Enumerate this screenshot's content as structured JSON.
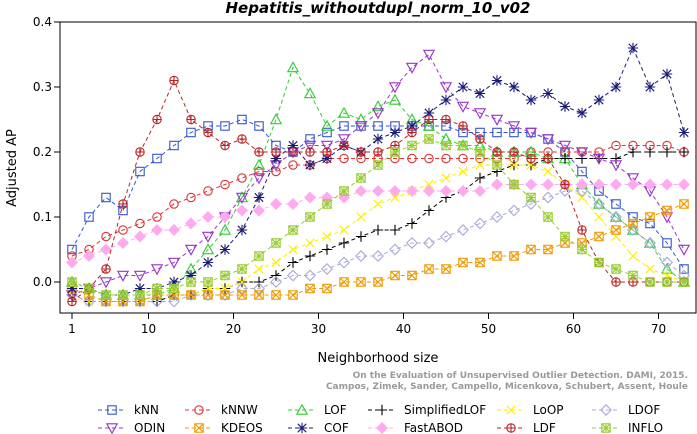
{
  "chart_data": {
    "type": "line",
    "title": "Hepatitis_withoutdupl_norm_10_v02",
    "xlabel": "Neighborhood size",
    "ylabel": "Adjusted AP",
    "xlim": [
      1,
      73
    ],
    "ylim": [
      -0.04,
      0.4
    ],
    "xticks": [
      1,
      10,
      20,
      30,
      40,
      50,
      60,
      70
    ],
    "yticks": [
      0.0,
      0.1,
      0.2,
      0.3,
      0.4
    ],
    "grid": false,
    "legend_position": "bottom",
    "credit_lines": [
      "Campos, Zimek, Sander, Campello, Micenkova, Schubert, Assent, Houle",
      "On the Evaluation of Unsupervised Outlier Detection. DAMI, 2015."
    ],
    "series": [
      {
        "name": "kNN",
        "color": "#3355cc",
        "marker": "square",
        "x": [
          1,
          3,
          5,
          7,
          9,
          11,
          13,
          15,
          17,
          19,
          21,
          23,
          25,
          27,
          29,
          31,
          33,
          35,
          37,
          39,
          41,
          43,
          45,
          47,
          49,
          51,
          53,
          55,
          57,
          59,
          61,
          63,
          65,
          67,
          69,
          71,
          73
        ],
        "y": [
          0.05,
          0.1,
          0.13,
          0.11,
          0.17,
          0.19,
          0.21,
          0.23,
          0.24,
          0.24,
          0.25,
          0.24,
          0.21,
          0.2,
          0.22,
          0.23,
          0.24,
          0.24,
          0.24,
          0.24,
          0.24,
          0.24,
          0.24,
          0.23,
          0.23,
          0.23,
          0.23,
          0.23,
          0.22,
          0.2,
          0.17,
          0.14,
          0.12,
          0.1,
          0.09,
          0.06,
          0.02
        ]
      },
      {
        "name": "kNNW",
        "color": "#dd3333",
        "marker": "circle",
        "x": [
          1,
          3,
          5,
          7,
          9,
          11,
          13,
          15,
          17,
          19,
          21,
          23,
          25,
          27,
          29,
          31,
          33,
          35,
          37,
          39,
          41,
          43,
          45,
          47,
          49,
          51,
          53,
          55,
          57,
          59,
          61,
          63,
          65,
          67,
          69,
          71,
          73
        ],
        "y": [
          0.04,
          0.05,
          0.07,
          0.08,
          0.09,
          0.1,
          0.12,
          0.13,
          0.14,
          0.15,
          0.16,
          0.17,
          0.17,
          0.18,
          0.18,
          0.19,
          0.19,
          0.19,
          0.19,
          0.19,
          0.19,
          0.19,
          0.19,
          0.19,
          0.19,
          0.19,
          0.19,
          0.2,
          0.2,
          0.2,
          0.2,
          0.2,
          0.21,
          0.21,
          0.21,
          0.21,
          0.2
        ]
      },
      {
        "name": "LOF",
        "color": "#33cc33",
        "marker": "triangle",
        "x": [
          1,
          3,
          5,
          7,
          9,
          11,
          13,
          15,
          17,
          19,
          21,
          23,
          25,
          27,
          29,
          31,
          33,
          35,
          37,
          39,
          41,
          43,
          45,
          47,
          49,
          51,
          53,
          55,
          57,
          59,
          61,
          63,
          65,
          67,
          69,
          71,
          73
        ],
        "y": [
          0.0,
          -0.01,
          -0.02,
          -0.02,
          -0.02,
          -0.02,
          -0.01,
          0.02,
          0.05,
          0.08,
          0.13,
          0.18,
          0.25,
          0.33,
          0.29,
          0.24,
          0.26,
          0.25,
          0.27,
          0.28,
          0.25,
          0.24,
          0.22,
          0.21,
          0.21,
          0.2,
          0.2,
          0.2,
          0.19,
          0.19,
          0.15,
          0.12,
          0.1,
          0.08,
          0.06,
          0.02,
          0.0
        ]
      },
      {
        "name": "SimplifiedLOF",
        "color": "#000000",
        "marker": "plus",
        "x": [
          1,
          3,
          5,
          7,
          9,
          11,
          13,
          15,
          17,
          19,
          21,
          23,
          25,
          27,
          29,
          31,
          33,
          35,
          37,
          39,
          41,
          43,
          45,
          47,
          49,
          51,
          53,
          55,
          57,
          59,
          61,
          63,
          65,
          67,
          69,
          71,
          73
        ],
        "y": [
          -0.02,
          -0.03,
          -0.03,
          -0.03,
          -0.03,
          -0.03,
          -0.02,
          -0.02,
          -0.01,
          -0.01,
          0.0,
          0.0,
          0.01,
          0.03,
          0.04,
          0.05,
          0.06,
          0.07,
          0.08,
          0.08,
          0.09,
          0.11,
          0.13,
          0.14,
          0.16,
          0.17,
          0.18,
          0.18,
          0.19,
          0.19,
          0.19,
          0.19,
          0.19,
          0.2,
          0.2,
          0.2,
          0.2
        ]
      },
      {
        "name": "LoOP",
        "color": "#ffee00",
        "marker": "x",
        "x": [
          1,
          3,
          5,
          7,
          9,
          11,
          13,
          15,
          17,
          19,
          21,
          23,
          25,
          27,
          29,
          31,
          33,
          35,
          37,
          39,
          41,
          43,
          45,
          47,
          49,
          51,
          53,
          55,
          57,
          59,
          61,
          63,
          65,
          67,
          69,
          71,
          73
        ],
        "y": [
          -0.02,
          -0.03,
          -0.03,
          -0.03,
          -0.03,
          -0.02,
          -0.02,
          -0.02,
          -0.01,
          -0.01,
          0.0,
          0.02,
          0.03,
          0.05,
          0.06,
          0.07,
          0.08,
          0.1,
          0.12,
          0.13,
          0.14,
          0.15,
          0.16,
          0.17,
          0.18,
          0.18,
          0.18,
          0.18,
          0.17,
          0.15,
          0.13,
          0.1,
          0.07,
          0.04,
          0.02,
          0.01,
          0.0
        ]
      },
      {
        "name": "LDOF",
        "color": "#aaaadd",
        "marker": "diamond",
        "x": [
          1,
          3,
          5,
          7,
          9,
          11,
          13,
          15,
          17,
          19,
          21,
          23,
          25,
          27,
          29,
          31,
          33,
          35,
          37,
          39,
          41,
          43,
          45,
          47,
          49,
          51,
          53,
          55,
          57,
          59,
          61,
          63,
          65,
          67,
          69,
          71,
          73
        ],
        "y": [
          -0.02,
          -0.03,
          -0.03,
          -0.03,
          -0.03,
          -0.03,
          -0.03,
          -0.02,
          -0.02,
          -0.02,
          -0.01,
          -0.01,
          0.0,
          0.01,
          0.01,
          0.02,
          0.03,
          0.04,
          0.04,
          0.05,
          0.06,
          0.06,
          0.07,
          0.08,
          0.09,
          0.1,
          0.11,
          0.12,
          0.13,
          0.14,
          0.14,
          0.12,
          0.1,
          0.08,
          0.06,
          0.03,
          0.01
        ]
      },
      {
        "name": "ODIN",
        "color": "#9933cc",
        "marker": "triangle-down",
        "x": [
          1,
          3,
          5,
          7,
          9,
          11,
          13,
          15,
          17,
          19,
          21,
          23,
          25,
          27,
          29,
          31,
          33,
          35,
          37,
          39,
          41,
          43,
          45,
          47,
          49,
          51,
          53,
          55,
          57,
          59,
          61,
          63,
          65,
          67,
          69,
          71,
          73
        ],
        "y": [
          -0.02,
          -0.01,
          0.0,
          0.01,
          0.01,
          0.02,
          0.03,
          0.05,
          0.07,
          0.1,
          0.13,
          0.16,
          0.18,
          0.2,
          0.21,
          0.21,
          0.22,
          0.24,
          0.26,
          0.3,
          0.33,
          0.35,
          0.3,
          0.27,
          0.26,
          0.25,
          0.24,
          0.23,
          0.22,
          0.21,
          0.2,
          0.19,
          0.18,
          0.16,
          0.14,
          0.1,
          0.05
        ]
      },
      {
        "name": "KDEOS",
        "color": "#ee9900",
        "marker": "square-x",
        "x": [
          1,
          3,
          5,
          7,
          9,
          11,
          13,
          15,
          17,
          19,
          21,
          23,
          25,
          27,
          29,
          31,
          33,
          35,
          37,
          39,
          41,
          43,
          45,
          47,
          49,
          51,
          53,
          55,
          57,
          59,
          61,
          63,
          65,
          67,
          69,
          71,
          73
        ],
        "y": [
          -0.01,
          -0.02,
          -0.03,
          -0.03,
          -0.03,
          -0.02,
          -0.02,
          -0.02,
          -0.02,
          -0.02,
          -0.02,
          -0.02,
          -0.02,
          -0.02,
          -0.01,
          -0.01,
          0.0,
          0.0,
          0.0,
          0.01,
          0.01,
          0.02,
          0.02,
          0.03,
          0.03,
          0.04,
          0.04,
          0.05,
          0.05,
          0.06,
          0.06,
          0.07,
          0.08,
          0.09,
          0.1,
          0.11,
          0.12
        ]
      },
      {
        "name": "COF",
        "color": "#1a1a77",
        "marker": "asterisk",
        "x": [
          1,
          3,
          5,
          7,
          9,
          11,
          13,
          15,
          17,
          19,
          21,
          23,
          25,
          27,
          29,
          31,
          33,
          35,
          37,
          39,
          41,
          43,
          45,
          47,
          49,
          51,
          53,
          55,
          57,
          59,
          61,
          63,
          65,
          67,
          69,
          71,
          73
        ],
        "y": [
          -0.01,
          -0.01,
          -0.02,
          -0.02,
          -0.01,
          -0.01,
          0.0,
          0.01,
          0.03,
          0.05,
          0.08,
          0.13,
          0.19,
          0.21,
          0.18,
          0.19,
          0.21,
          0.2,
          0.22,
          0.23,
          0.24,
          0.26,
          0.28,
          0.3,
          0.29,
          0.31,
          0.3,
          0.28,
          0.29,
          0.27,
          0.26,
          0.28,
          0.3,
          0.36,
          0.3,
          0.32,
          0.23
        ]
      },
      {
        "name": "FastABOD",
        "color": "#ffaaee",
        "marker": "diamond-filled",
        "x": [
          1,
          3,
          5,
          7,
          9,
          11,
          13,
          15,
          17,
          19,
          21,
          23,
          25,
          27,
          29,
          31,
          33,
          35,
          37,
          39,
          41,
          43,
          45,
          47,
          49,
          51,
          53,
          55,
          57,
          59,
          61,
          63,
          65,
          67,
          69,
          71,
          73
        ],
        "y": [
          0.03,
          0.04,
          0.05,
          0.06,
          0.07,
          0.08,
          0.08,
          0.09,
          0.1,
          0.1,
          0.11,
          0.11,
          0.12,
          0.12,
          0.13,
          0.13,
          0.13,
          0.14,
          0.14,
          0.14,
          0.14,
          0.14,
          0.14,
          0.14,
          0.14,
          0.15,
          0.15,
          0.15,
          0.15,
          0.15,
          0.15,
          0.15,
          0.15,
          0.15,
          0.15,
          0.15,
          0.15
        ]
      },
      {
        "name": "LDF",
        "color": "#bb2222",
        "marker": "circle-plus",
        "x": [
          1,
          3,
          5,
          7,
          9,
          11,
          13,
          15,
          17,
          19,
          21,
          23,
          25,
          27,
          29,
          31,
          33,
          35,
          37,
          39,
          41,
          43,
          45,
          47,
          49,
          51,
          53,
          55,
          57,
          59,
          61,
          63,
          65,
          67,
          69,
          71,
          73
        ],
        "y": [
          -0.03,
          -0.01,
          0.02,
          0.12,
          0.2,
          0.25,
          0.31,
          0.25,
          0.23,
          0.21,
          0.22,
          0.2,
          0.2,
          0.2,
          0.2,
          0.2,
          0.21,
          0.2,
          0.2,
          0.21,
          0.23,
          0.25,
          0.25,
          0.24,
          0.22,
          0.2,
          0.2,
          0.19,
          0.19,
          0.15,
          0.08,
          0.03,
          0.0,
          0.0,
          0.0,
          0.0,
          0.0
        ]
      },
      {
        "name": "INFLO",
        "color": "#99cc33",
        "marker": "square-star",
        "x": [
          1,
          3,
          5,
          7,
          9,
          11,
          13,
          15,
          17,
          19,
          21,
          23,
          25,
          27,
          29,
          31,
          33,
          35,
          37,
          39,
          41,
          43,
          45,
          47,
          49,
          51,
          53,
          55,
          57,
          59,
          61,
          63,
          65,
          67,
          69,
          71,
          73
        ],
        "y": [
          0.0,
          -0.01,
          -0.02,
          -0.02,
          -0.02,
          -0.01,
          -0.01,
          0.0,
          0.0,
          0.01,
          0.02,
          0.04,
          0.06,
          0.08,
          0.1,
          0.12,
          0.14,
          0.16,
          0.18,
          0.2,
          0.21,
          0.22,
          0.21,
          0.21,
          0.2,
          0.18,
          0.15,
          0.13,
          0.1,
          0.07,
          0.05,
          0.03,
          0.02,
          0.01,
          0.0,
          0.0,
          0.0
        ]
      }
    ]
  }
}
